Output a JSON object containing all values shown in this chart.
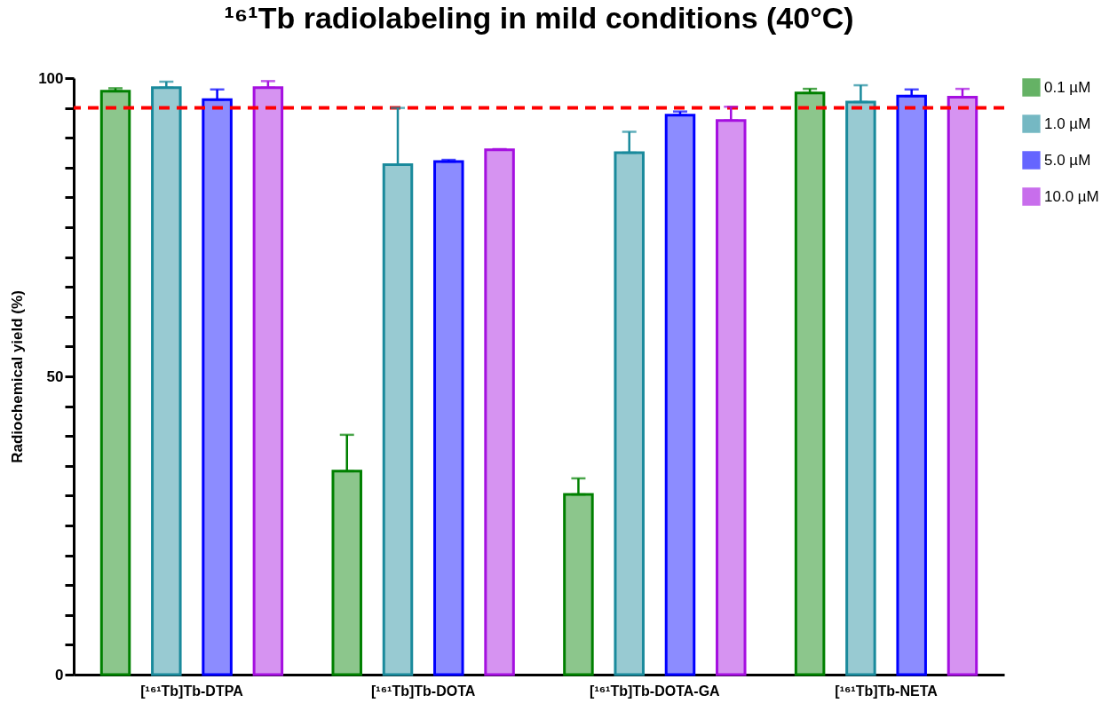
{
  "chart_data": {
    "type": "bar",
    "title": "¹⁶¹Tb radiolabeling in mild conditions (40°C)",
    "ylabel": "Radiochemical yield  (%)",
    "categories": [
      "[¹⁶¹Tb]Tb-DTPA",
      "[¹⁶¹Tb]Tb-DOTA",
      "[¹⁶¹Tb]Tb-DOTA-GA",
      "[¹⁶¹Tb]Tb-NETA"
    ],
    "series": [
      {
        "name": "0.1 µM",
        "color": "#008000",
        "values": [
          97.8,
          34.1,
          30.2,
          97.5
        ],
        "errors": [
          [
            97.8,
            98.3
          ],
          [
            34.1,
            40.2
          ],
          [
            30.2,
            32.9
          ],
          [
            97.5,
            98.2
          ]
        ]
      },
      {
        "name": "1.0 µM",
        "color": "#1a8a9c",
        "values": [
          98.4,
          85.5,
          87.5,
          96.0
        ],
        "errors": [
          [
            98.4,
            99.4
          ],
          [
            85.5,
            95.0
          ],
          [
            87.5,
            91.0
          ],
          [
            96.0,
            98.8
          ]
        ]
      },
      {
        "name": "5.0 µM",
        "color": "#0000ff",
        "values": [
          96.4,
          86.0,
          93.8,
          97.0
        ],
        "errors": [
          [
            96.4,
            98.1
          ],
          [
            86.0,
            86.3
          ],
          [
            93.8,
            94.4
          ],
          [
            97.0,
            98.1
          ]
        ]
      },
      {
        "name": "10.0 µM",
        "color": "#a50fe0",
        "values": [
          98.4,
          88.0,
          92.9,
          96.8
        ],
        "errors": [
          [
            98.4,
            99.5
          ],
          [
            88.0,
            88.1
          ],
          [
            92.9,
            95.2
          ],
          [
            96.8,
            98.2
          ]
        ]
      }
    ],
    "ylim": [
      0,
      100
    ],
    "yticks": [
      0,
      {
        "value": 5,
        "label": null
      },
      {
        "value": 10,
        "label": null
      },
      {
        "value": 15,
        "label": null
      },
      {
        "value": 20,
        "label": null
      },
      {
        "value": 25,
        "label": null
      },
      {
        "value": 30,
        "label": null
      },
      {
        "value": 35,
        "label": null
      },
      {
        "value": 40,
        "label": null
      },
      {
        "value": 45,
        "label": null
      },
      50,
      {
        "value": 55,
        "label": null
      },
      {
        "value": 60,
        "label": null
      },
      {
        "value": 65,
        "label": null
      },
      {
        "value": 70,
        "label": null
      },
      {
        "value": 75,
        "label": null
      },
      {
        "value": 80,
        "label": null
      },
      {
        "value": 85,
        "label": null
      },
      {
        "value": 90,
        "label": null
      },
      {
        "value": 95,
        "label": null
      },
      100
    ],
    "ref_lines": [
      {
        "axis": "y",
        "value": 95,
        "color": "#ff0000",
        "line_style": "dashed"
      }
    ],
    "legend": "top right"
  }
}
